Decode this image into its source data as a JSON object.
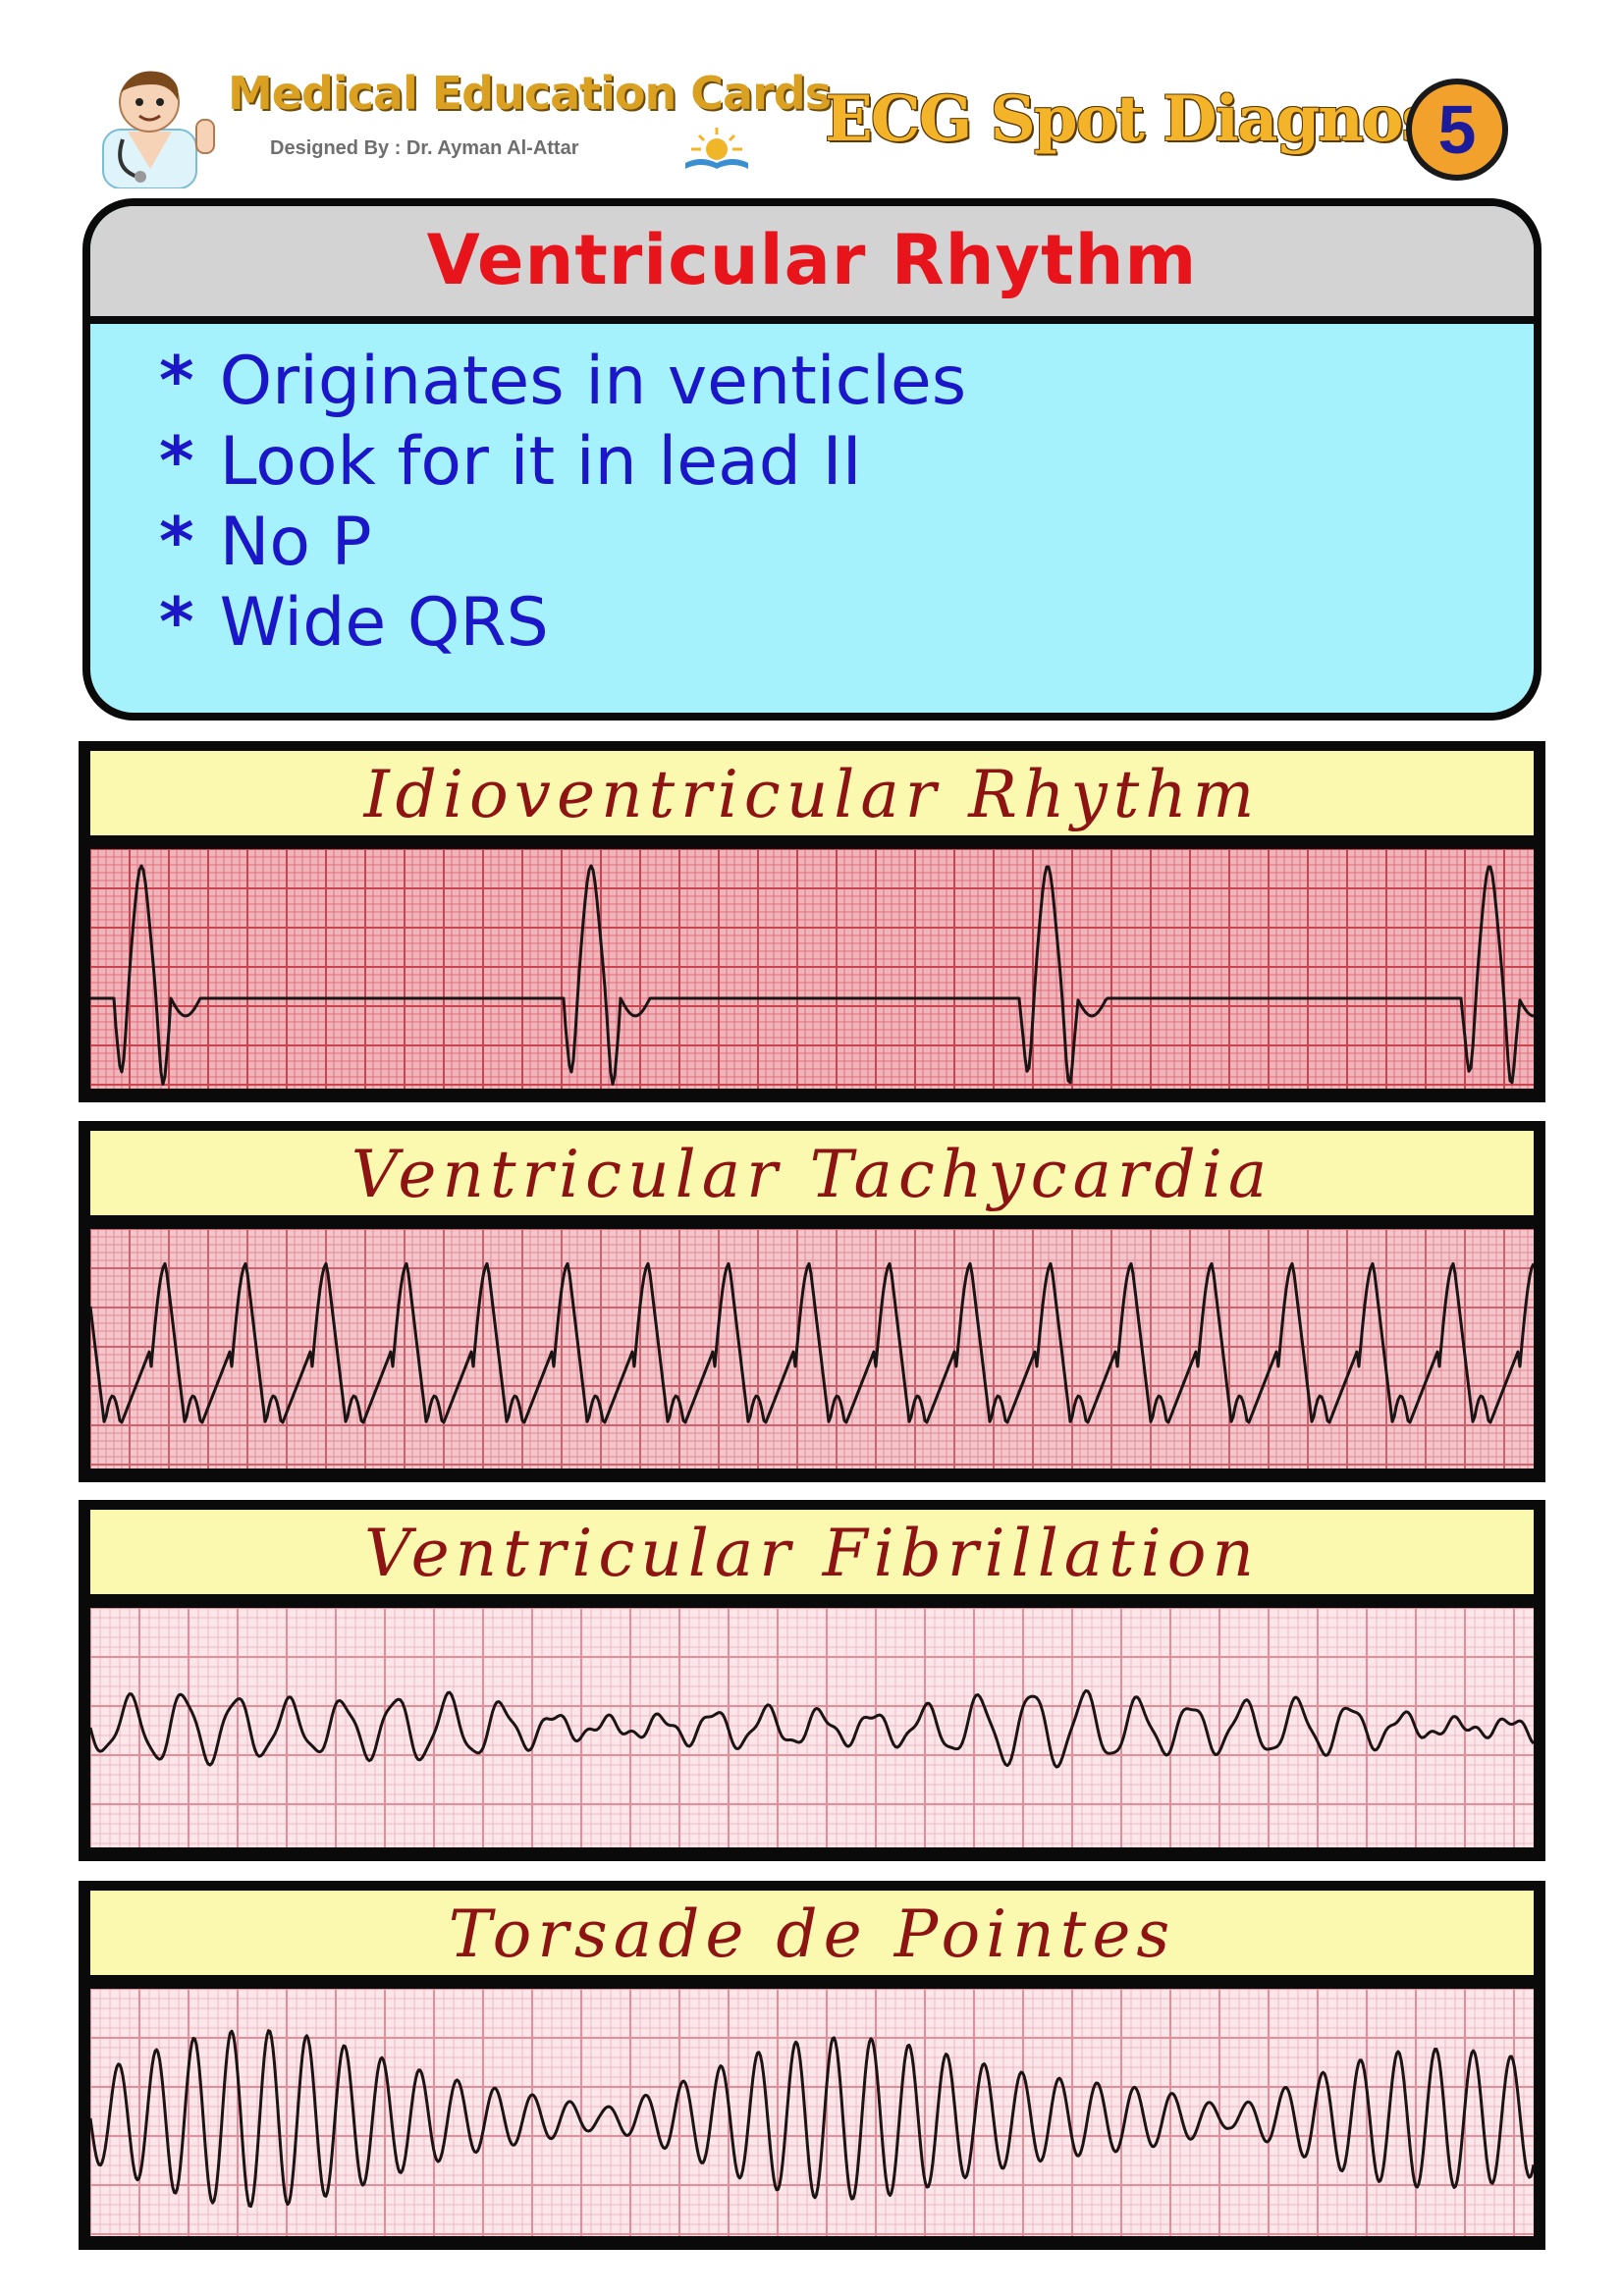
{
  "header": {
    "brand_title": "Medical Education Cards",
    "brand_subtitle": "Designed By : Dr. Ayman Al-Attar",
    "card_title": "ECG Spot Diagnosis",
    "card_number": "5",
    "mascot_icon": "doctor-mascot-icon",
    "logo_icon": "sun-book-logo-icon"
  },
  "info": {
    "title": "Ventricular Rhythm",
    "bullet_symbol": "*",
    "points": [
      "Originates in venticles",
      "Look for it in lead II",
      "No P",
      "Wide QRS"
    ]
  },
  "strips": [
    {
      "title": "Idioventricular Rhythm"
    },
    {
      "title": "Ventricular Tachycardia"
    },
    {
      "title": "Ventricular Fibrillation"
    },
    {
      "title": "Torsade de Pointes"
    }
  ],
  "colors": {
    "info_background": "#a6f2fc",
    "info_header": "#d3d3d3",
    "info_title": "#e8141b",
    "info_text": "#1b16c8",
    "strip_title_background": "#fbf9b0",
    "strip_title_text": "#8e1414",
    "ecg_paper_dense": "#e2707c",
    "ecg_paper_light": "#f7dde2",
    "badge": "#f2a12d"
  }
}
